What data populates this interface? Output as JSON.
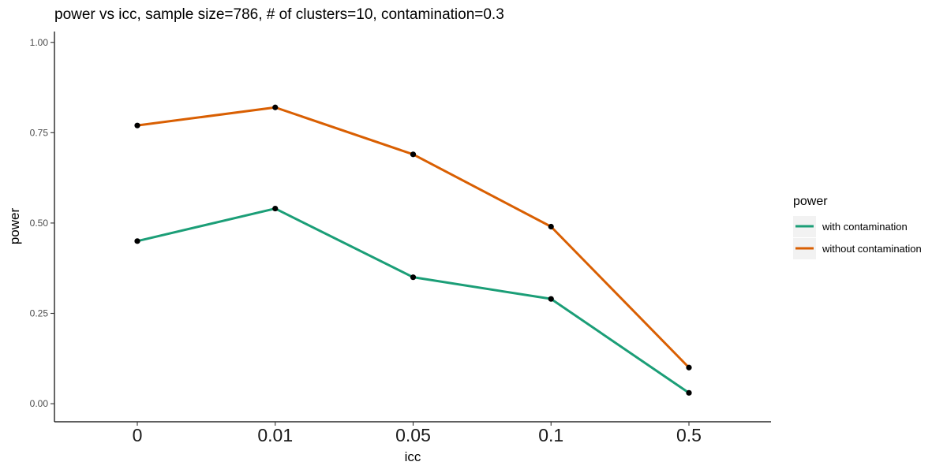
{
  "chart_data": {
    "type": "line",
    "title": "power vs icc, sample size=786, # of clusters=10, contamination=0.3",
    "xlabel": "icc",
    "ylabel": "power",
    "categories": [
      "0",
      "0.01",
      "0.05",
      "0.1",
      "0.5"
    ],
    "y_ticks": [
      "0.00",
      "0.25",
      "0.50",
      "0.75",
      "1.00"
    ],
    "ylim": [
      -0.05,
      1.03
    ],
    "grid": false,
    "legend": {
      "title": "power",
      "position": "right"
    },
    "series": [
      {
        "name": "with contamination",
        "color": "#1b9e77",
        "values": [
          0.45,
          0.54,
          0.35,
          0.29,
          0.03
        ]
      },
      {
        "name": "without contamination",
        "color": "#d95f02",
        "values": [
          0.77,
          0.82,
          0.69,
          0.49,
          0.1
        ]
      }
    ],
    "point_color": "#000000"
  }
}
